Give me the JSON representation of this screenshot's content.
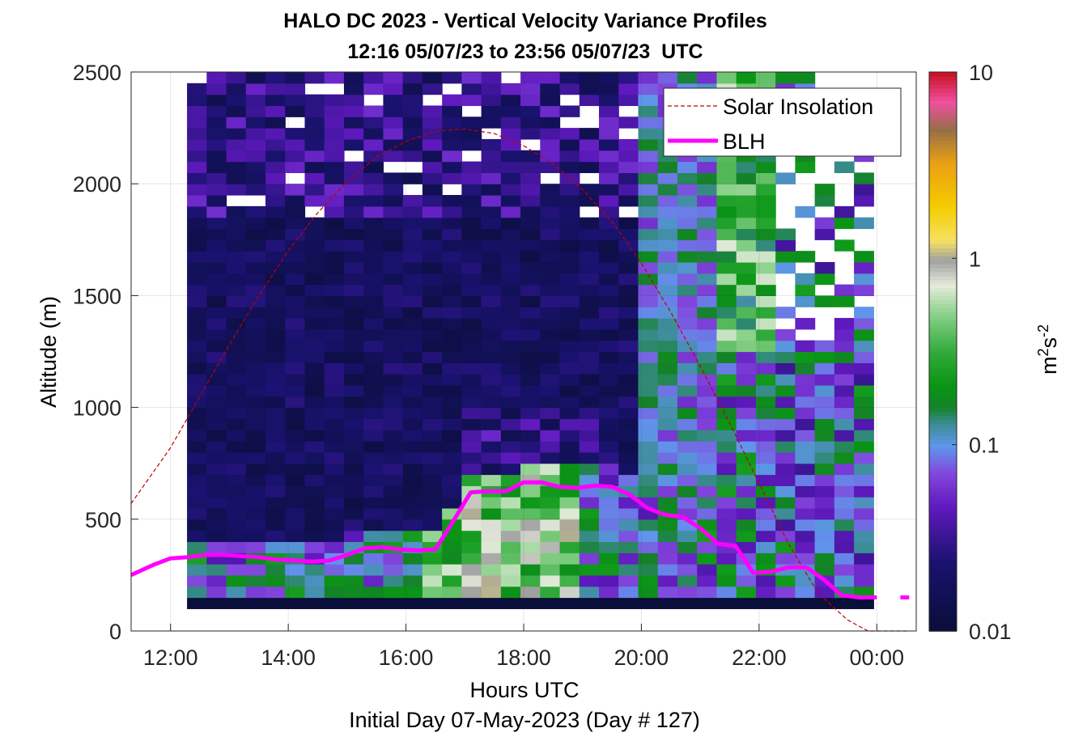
{
  "chart_data": {
    "type": "heatmap",
    "title": "HALO DC 2023 - Vertical Velocity Variance Profiles",
    "subtitle": "12:16 05/07/23 to 23:56 05/07/23  UTC",
    "xlabel": "Hours UTC",
    "xlabel_secondary": "Initial Day 07-May-2023 (Day # 127)",
    "ylabel": "Altitude (m)",
    "colorbar_label": "m²s⁻²",
    "colorbar_label_base": "m",
    "colorbar_label_sup1": "2",
    "colorbar_label_mid": "s",
    "colorbar_label_sup2": "-2",
    "colorbar_scale": "log",
    "colorbar_range": [
      0.01,
      10
    ],
    "colorbar_ticks": [
      {
        "value": 0.01,
        "label": "0.01"
      },
      {
        "value": 0.1,
        "label": "0.1"
      },
      {
        "value": 1,
        "label": "1"
      },
      {
        "value": 10,
        "label": "10"
      }
    ],
    "x_axis": {
      "range_hours": [
        11.33,
        24.67
      ],
      "ticks": [
        {
          "value": 12,
          "label": "12:00"
        },
        {
          "value": 14,
          "label": "14:00"
        },
        {
          "value": 16,
          "label": "16:00"
        },
        {
          "value": 18,
          "label": "18:00"
        },
        {
          "value": 20,
          "label": "20:00"
        },
        {
          "value": 22,
          "label": "22:00"
        },
        {
          "value": 24,
          "label": "00:00"
        }
      ]
    },
    "y_axis": {
      "range": [
        0,
        2500
      ],
      "ticks": [
        {
          "value": 0,
          "label": "0"
        },
        {
          "value": 500,
          "label": "500"
        },
        {
          "value": 1000,
          "label": "1000"
        },
        {
          "value": 1500,
          "label": "1500"
        },
        {
          "value": 2000,
          "label": "2000"
        },
        {
          "value": 2500,
          "label": "2500"
        }
      ]
    },
    "grid": true,
    "legend_position": "top-right",
    "series": [
      {
        "name": "Solar Insolation",
        "style": "dashed",
        "color": "#c00000",
        "x": [
          11.33,
          12.0,
          12.5,
          13.0,
          13.5,
          14.0,
          14.5,
          15.0,
          15.5,
          16.0,
          16.5,
          17.0,
          17.5,
          18.0,
          18.5,
          19.0,
          19.5,
          20.0,
          20.5,
          21.0,
          21.5,
          22.0,
          22.5,
          23.0,
          23.5,
          23.85,
          24.0,
          24.55
        ],
        "y": [
          570,
          820,
          1050,
          1280,
          1500,
          1700,
          1870,
          2010,
          2120,
          2190,
          2235,
          2245,
          2225,
          2170,
          2090,
          1975,
          1830,
          1645,
          1425,
          1185,
          930,
          660,
          390,
          170,
          50,
          0,
          0,
          0
        ]
      },
      {
        "name": "BLH",
        "style": "solid",
        "color": "#ff00ff",
        "x": [
          11.33,
          11.7,
          12.0,
          12.3,
          12.6,
          12.9,
          13.2,
          13.5,
          13.8,
          14.1,
          14.4,
          14.7,
          15.0,
          15.3,
          15.6,
          15.9,
          16.2,
          16.5,
          16.8,
          17.1,
          17.4,
          17.7,
          18.0,
          18.3,
          18.6,
          18.9,
          19.2,
          19.5,
          19.8,
          20.1,
          20.4,
          20.7,
          21.0,
          21.3,
          21.6,
          21.9,
          22.2,
          22.5,
          22.8,
          23.1,
          23.4,
          23.7,
          24.0,
          24.3
        ],
        "y": [
          250,
          295,
          325,
          330,
          340,
          340,
          335,
          330,
          320,
          315,
          310,
          315,
          340,
          370,
          375,
          365,
          360,
          365,
          490,
          620,
          625,
          625,
          665,
          665,
          645,
          640,
          650,
          645,
          610,
          550,
          520,
          510,
          460,
          390,
          380,
          260,
          265,
          285,
          285,
          230,
          160,
          150,
          150,
          null
        ],
        "y_label_note": ""
      },
      {
        "name": "",
        "style": "solid",
        "color": "#ff00ff",
        "x": [
          24.4,
          24.55
        ],
        "y": [
          150,
          150
        ]
      }
    ],
    "heatmap": {
      "x_start": 12.28,
      "x_end": 23.93,
      "bin_hours": 0.3333,
      "y_start": 100,
      "y_end": 2500,
      "bin_m": 50,
      "values_note": "log10 variance per bin; values drawn on the map"
    }
  }
}
